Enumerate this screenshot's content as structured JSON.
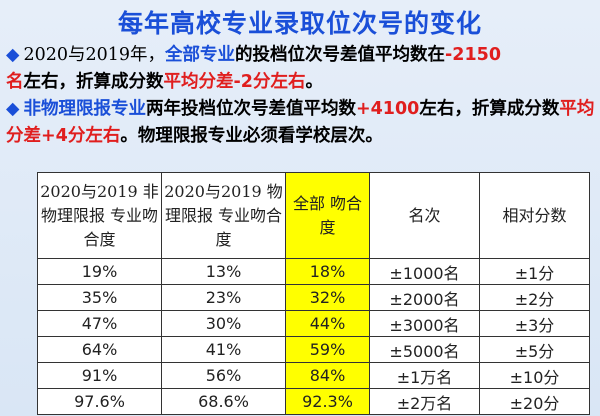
{
  "title": "每年高校专业录取位次号的变化",
  "bullet1": {
    "glyph": "◆",
    "seg1": "2020与2019年，",
    "seg2": "全部专业",
    "seg3": "的投档位次号差值平均数在",
    "seg4": "-2150",
    "seg5": "名",
    "seg6": "左右，折算成分数",
    "seg7": "平均分差-2分左右",
    "seg8": "。"
  },
  "bullet2": {
    "glyph": "◆",
    "seg1": "非物理限报专业",
    "seg2": "两年投档位次号差值平均数",
    "seg3": "+4100",
    "seg4": "左右，折算成分数",
    "seg5": "平均分差+4分左右",
    "seg6": "。物理限报专业必须看学校层次。"
  },
  "table": {
    "headers": [
      "2020与2019 非物理限报 专业吻合度",
      "2020与2019 物理限报 专业吻合度",
      "全部 吻合度",
      "名次",
      "相对分数"
    ],
    "rows": [
      {
        "c1": "19%",
        "c2": "13%",
        "c3": "18%",
        "c4": "±1000名",
        "c5": "±1分"
      },
      {
        "c1": "35%",
        "c2": "23%",
        "c3": "32%",
        "c4": "±2000名",
        "c5": "±2分"
      },
      {
        "c1": "47%",
        "c2": "30%",
        "c3": "44%",
        "c4": "±3000名",
        "c5": "±3分"
      },
      {
        "c1": "64%",
        "c2": "41%",
        "c3": "59%",
        "c4": "±5000名",
        "c5": "±5分"
      },
      {
        "c1": "91%",
        "c2": "56%",
        "c3": "84%",
        "c4": "±1万名",
        "c5": "±10分"
      },
      {
        "c1": "97.6%",
        "c2": "68.6%",
        "c3": "92.3%",
        "c4": "±2万名",
        "c5": "±20分"
      }
    ]
  },
  "colors": {
    "title_blue": "#1a4fd8",
    "highlight_red": "#e01e1e",
    "highlight_yellow": "#ffff00"
  }
}
